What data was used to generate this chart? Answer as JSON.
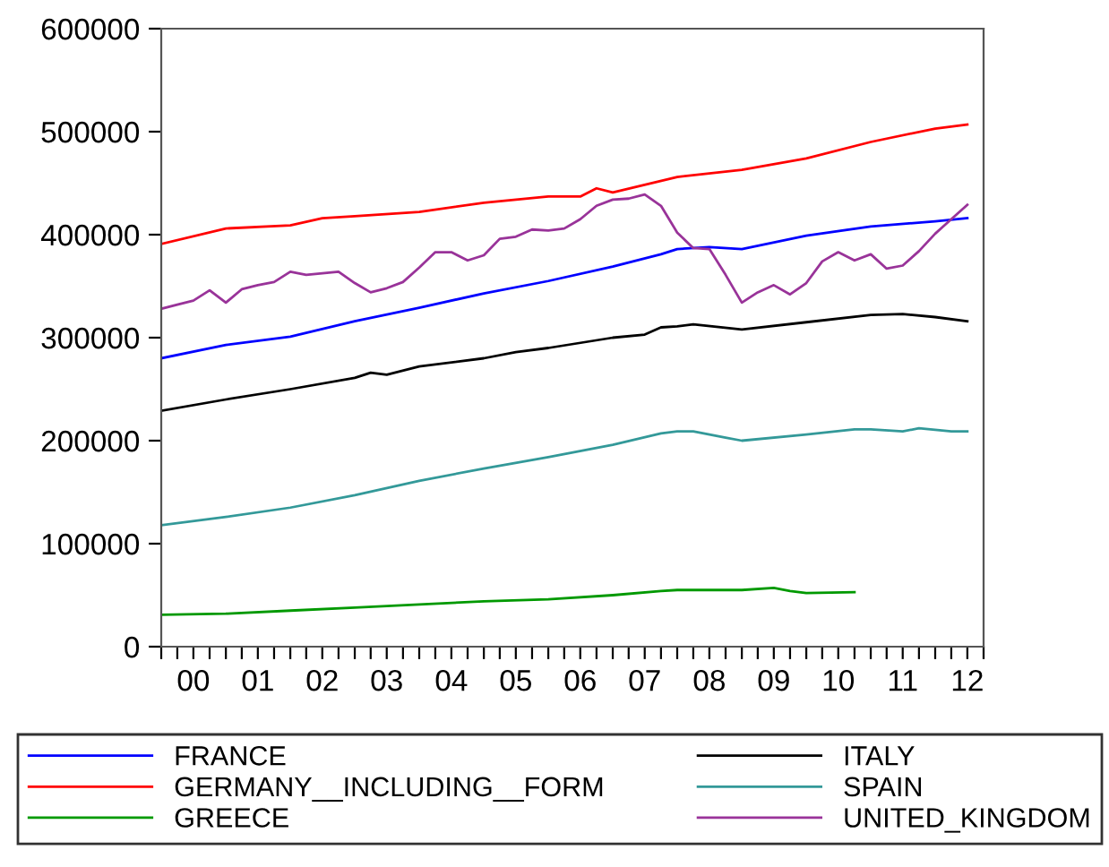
{
  "chart_data": {
    "type": "line",
    "legend": "bottom",
    "grid": false,
    "xlim": [
      "2000-01",
      "2012-10"
    ],
    "ylim": [
      0,
      600000
    ],
    "yticks": [
      0,
      100000,
      200000,
      300000,
      400000,
      500000,
      600000
    ],
    "xticks": [
      {
        "value": "2000-01",
        "label": null
      },
      {
        "value": "2000-04",
        "label": null
      },
      {
        "value": "2000-07",
        "label": "00"
      },
      {
        "value": "2000-10",
        "label": null
      },
      {
        "value": "2001-01",
        "label": null
      },
      {
        "value": "2001-04",
        "label": null
      },
      {
        "value": "2001-07",
        "label": "01"
      },
      {
        "value": "2001-10",
        "label": null
      },
      {
        "value": "2002-01",
        "label": null
      },
      {
        "value": "2002-04",
        "label": null
      },
      {
        "value": "2002-07",
        "label": "02"
      },
      {
        "value": "2002-10",
        "label": null
      },
      {
        "value": "2003-01",
        "label": null
      },
      {
        "value": "2003-04",
        "label": null
      },
      {
        "value": "2003-07",
        "label": "03"
      },
      {
        "value": "2003-10",
        "label": null
      },
      {
        "value": "2004-01",
        "label": null
      },
      {
        "value": "2004-04",
        "label": null
      },
      {
        "value": "2004-07",
        "label": "04"
      },
      {
        "value": "2004-10",
        "label": null
      },
      {
        "value": "2005-01",
        "label": null
      },
      {
        "value": "2005-04",
        "label": null
      },
      {
        "value": "2005-07",
        "label": "05"
      },
      {
        "value": "2005-10",
        "label": null
      },
      {
        "value": "2006-01",
        "label": null
      },
      {
        "value": "2006-04",
        "label": null
      },
      {
        "value": "2006-07",
        "label": "06"
      },
      {
        "value": "2006-10",
        "label": null
      },
      {
        "value": "2007-01",
        "label": null
      },
      {
        "value": "2007-04",
        "label": null
      },
      {
        "value": "2007-07",
        "label": "07"
      },
      {
        "value": "2007-10",
        "label": null
      },
      {
        "value": "2008-01",
        "label": null
      },
      {
        "value": "2008-04",
        "label": null
      },
      {
        "value": "2008-07",
        "label": "08"
      },
      {
        "value": "2008-10",
        "label": null
      },
      {
        "value": "2009-01",
        "label": null
      },
      {
        "value": "2009-04",
        "label": null
      },
      {
        "value": "2009-07",
        "label": "09"
      },
      {
        "value": "2009-10",
        "label": null
      },
      {
        "value": "2010-01",
        "label": null
      },
      {
        "value": "2010-04",
        "label": null
      },
      {
        "value": "2010-07",
        "label": "10"
      },
      {
        "value": "2010-10",
        "label": null
      },
      {
        "value": "2011-01",
        "label": null
      },
      {
        "value": "2011-04",
        "label": null
      },
      {
        "value": "2011-07",
        "label": "11"
      },
      {
        "value": "2011-10",
        "label": null
      },
      {
        "value": "2012-01",
        "label": null
      },
      {
        "value": "2012-04",
        "label": null
      },
      {
        "value": "2012-07",
        "label": "12"
      },
      {
        "value": "2012-10",
        "label": null
      }
    ],
    "series": [
      {
        "name": "FRANCE",
        "color": "#0000ff",
        "x": [
          "2000-01",
          "2001-01",
          "2002-01",
          "2003-01",
          "2004-01",
          "2005-01",
          "2006-01",
          "2007-01",
          "2007-10",
          "2008-01",
          "2008-07",
          "2009-01",
          "2010-01",
          "2011-01",
          "2012-01",
          "2012-07"
        ],
        "values": [
          280000,
          293000,
          301000,
          316000,
          329000,
          343000,
          355000,
          369000,
          381000,
          386000,
          388000,
          386000,
          399000,
          408000,
          413000,
          416000
        ]
      },
      {
        "name": "GERMANY__INCLUDING__FORM",
        "color": "#ff0000",
        "x": [
          "2000-01",
          "2001-01",
          "2002-01",
          "2002-07",
          "2003-01",
          "2004-01",
          "2005-01",
          "2006-01",
          "2006-07",
          "2006-10",
          "2007-01",
          "2008-01",
          "2009-01",
          "2010-01",
          "2011-01",
          "2012-01",
          "2012-07"
        ],
        "values": [
          391000,
          406000,
          409000,
          416000,
          418000,
          422000,
          431000,
          437000,
          437000,
          445000,
          441000,
          456000,
          463000,
          474000,
          490000,
          503000,
          507000
        ]
      },
      {
        "name": "GREECE",
        "color": "#009900",
        "x": [
          "2000-01",
          "2001-01",
          "2002-01",
          "2003-01",
          "2004-01",
          "2005-01",
          "2006-01",
          "2007-01",
          "2007-10",
          "2008-01",
          "2009-01",
          "2009-07",
          "2009-10",
          "2010-01",
          "2010-10"
        ],
        "values": [
          31000,
          32000,
          35000,
          38000,
          41000,
          44000,
          46000,
          50000,
          54000,
          55000,
          55000,
          57000,
          54000,
          52000,
          53000
        ]
      },
      {
        "name": "ITALY",
        "color": "#000000",
        "x": [
          "2000-01",
          "2001-01",
          "2002-01",
          "2003-01",
          "2003-04",
          "2003-07",
          "2004-01",
          "2005-01",
          "2005-07",
          "2006-01",
          "2007-01",
          "2007-07",
          "2007-10",
          "2008-01",
          "2008-04",
          "2009-01",
          "2010-01",
          "2011-01",
          "2011-07",
          "2012-01",
          "2012-07"
        ],
        "values": [
          229000,
          240000,
          250000,
          261000,
          266000,
          264000,
          272000,
          280000,
          286000,
          290000,
          300000,
          303000,
          310000,
          311000,
          313000,
          308000,
          315000,
          322000,
          323000,
          320000,
          316000
        ]
      },
      {
        "name": "SPAIN",
        "color": "#339999",
        "x": [
          "2000-01",
          "2001-01",
          "2002-01",
          "2003-01",
          "2004-01",
          "2005-01",
          "2006-01",
          "2007-01",
          "2007-10",
          "2008-01",
          "2008-04",
          "2008-10",
          "2009-01",
          "2010-01",
          "2010-10",
          "2011-01",
          "2011-07",
          "2011-10",
          "2012-04",
          "2012-07"
        ],
        "values": [
          118000,
          126000,
          135000,
          147000,
          161000,
          173000,
          184000,
          196000,
          207000,
          209000,
          209000,
          203000,
          200000,
          206000,
          211000,
          211000,
          209000,
          212000,
          209000,
          209000
        ]
      },
      {
        "name": "UNITED_KINGDOM",
        "color": "#993399",
        "x": [
          "2000-01",
          "2000-04",
          "2000-07",
          "2000-10",
          "2001-01",
          "2001-04",
          "2001-07",
          "2001-10",
          "2002-01",
          "2002-04",
          "2002-10",
          "2003-01",
          "2003-04",
          "2003-07",
          "2003-10",
          "2004-01",
          "2004-04",
          "2004-07",
          "2004-10",
          "2005-01",
          "2005-04",
          "2005-07",
          "2005-10",
          "2006-01",
          "2006-04",
          "2006-07",
          "2006-10",
          "2007-01",
          "2007-04",
          "2007-07",
          "2007-10",
          "2008-01",
          "2008-04",
          "2008-07",
          "2008-10",
          "2009-01",
          "2009-04",
          "2009-07",
          "2009-10",
          "2010-01",
          "2010-04",
          "2010-07",
          "2010-10",
          "2011-01",
          "2011-04",
          "2011-07",
          "2011-10",
          "2012-01",
          "2012-04",
          "2012-07"
        ],
        "values": [
          328000,
          332000,
          336000,
          346000,
          334000,
          347000,
          351000,
          354000,
          364000,
          361000,
          364000,
          353000,
          344000,
          348000,
          354000,
          368000,
          383000,
          383000,
          375000,
          380000,
          396000,
          398000,
          405000,
          404000,
          406000,
          415000,
          428000,
          434000,
          435000,
          439000,
          428000,
          402000,
          387000,
          386000,
          361000,
          334000,
          344000,
          351000,
          342000,
          353000,
          374000,
          383000,
          375000,
          381000,
          367000,
          370000,
          384000,
          401000,
          415000,
          429000
        ]
      }
    ]
  }
}
